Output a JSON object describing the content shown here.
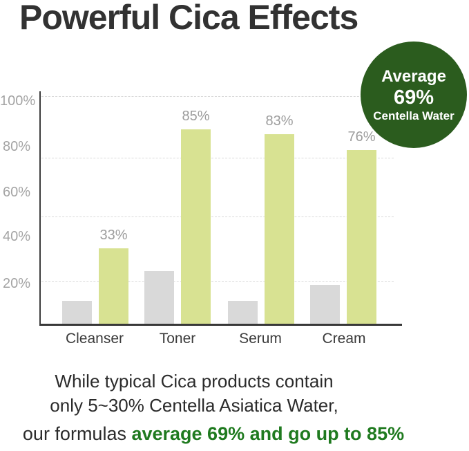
{
  "title": "Powerful Cica Effects",
  "badge": {
    "line1": "Average",
    "line2": "69%",
    "line3": "Centella Water"
  },
  "caption": {
    "line1": "While typical Cica products contain",
    "line2": "only 5~30% Centella Asiatica Water,",
    "line3_prefix": "our formulas ",
    "line3_highlight": "average 69% and go up to 85%"
  },
  "colors": {
    "badge_bg": "#2b5c1e",
    "badge_text": "#ffffff",
    "green_text": "#1f7a1f",
    "bar_green": "#d8e292",
    "bar_gray": "#d9d9d9",
    "grid": "#d9d9d9",
    "axis": "#3b3b3b",
    "y_tick": "#a4a4a4",
    "value_label": "#9c9c9c",
    "x_label": "#3b3b3b",
    "title_text": "#323232"
  },
  "chart_data": {
    "type": "bar",
    "title": "Powerful Cica Effects",
    "categories": [
      "Cleanser",
      "Toner",
      "Serum",
      "Cream"
    ],
    "series": [
      {
        "name": "typical Cica products",
        "color_key": "bar_gray",
        "values": [
          10,
          23,
          10,
          17
        ],
        "value_labels": [
          "",
          "",
          "",
          ""
        ]
      },
      {
        "name": "our formulas",
        "color_key": "bar_green",
        "values": [
          33,
          85,
          83,
          76
        ],
        "value_labels": [
          "33%",
          "85%",
          "83%",
          "76%"
        ]
      }
    ],
    "y_tick_labels": [
      "100%",
      "80%",
      "60%",
      "40%",
      "20%"
    ],
    "ylim": [
      0,
      100
    ],
    "ylabel": "",
    "xlabel": "",
    "grid": "dashed horizontal lines",
    "legend": "none"
  }
}
